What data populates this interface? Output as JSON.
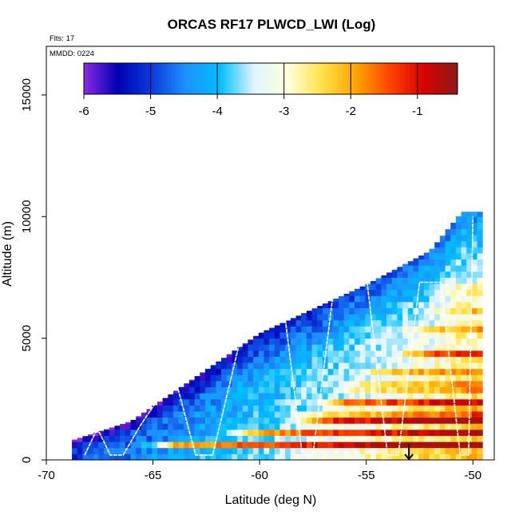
{
  "chart_data": {
    "type": "heatmap",
    "title": "ORCAS RF17 PLWCD_LWI (Log)",
    "flights_label": "Flts: 17",
    "mmdd_label": "MMDD: 0224",
    "xlabel": "Latitude (deg N)",
    "ylabel": "Altitude (m)",
    "xlim": [
      -70,
      -49
    ],
    "ylim": [
      0,
      17000
    ],
    "x_ticks": [
      -70,
      -65,
      -60,
      -55,
      -50
    ],
    "x_tick_labels": [
      "-70",
      "-65",
      "-60",
      "-55",
      "-50"
    ],
    "y_ticks": [
      0,
      5000,
      10000,
      15000
    ],
    "y_tick_labels": [
      "0",
      "5000",
      "10000",
      "15000"
    ],
    "colorbar": {
      "range": [
        -6,
        -0.4
      ],
      "ticks": [
        -6,
        -5,
        -4,
        -3,
        -2,
        -1
      ],
      "tick_labels": [
        "-6",
        "-5",
        "-4",
        "-3",
        "-2",
        "-1"
      ],
      "colors": [
        "#8a2be2",
        "#0000b4",
        "#0a3cdc",
        "#1e90ff",
        "#00bfff",
        "#e0f4ff",
        "#ffffe0",
        "#ffe24a",
        "#ffa500",
        "#ff4500",
        "#d90000",
        "#8b1a1a"
      ]
    },
    "cell_size": {
      "dlat": 0.25,
      "dalt": 250
    },
    "field_extent": {
      "lat_min": -68.8,
      "lat_max": -49.7,
      "top_altitude_by_latitude": [
        [
          -68.8,
          800
        ],
        [
          -66,
          1600
        ],
        [
          -60,
          5200
        ],
        [
          -55,
          7200
        ],
        [
          -52,
          8600
        ],
        [
          -50.5,
          10200
        ]
      ]
    },
    "flight_track": {
      "color": "#ffffff",
      "points": [
        [
          -68.2,
          200
        ],
        [
          -67.6,
          1300
        ],
        [
          -67.0,
          200
        ],
        [
          -66.4,
          200
        ],
        [
          -65.6,
          1400
        ],
        [
          -64.0,
          3500
        ],
        [
          -63.0,
          200
        ],
        [
          -62.2,
          200
        ],
        [
          -61.0,
          4600
        ],
        [
          -59.0,
          7200
        ],
        [
          -58.0,
          200
        ],
        [
          -57.5,
          200
        ],
        [
          -56.5,
          7200
        ],
        [
          -55.0,
          7600
        ],
        [
          -54.0,
          200
        ],
        [
          -53.5,
          200
        ],
        [
          -52.5,
          7300
        ],
        [
          -51.5,
          7300
        ],
        [
          -50.6,
          200
        ],
        [
          -50.2,
          200
        ],
        [
          -50.0,
          10000
        ]
      ]
    },
    "marker": {
      "lat": -53.0,
      "alt_top": 650,
      "alt_bottom": 0,
      "symbol": "down-arrow"
    }
  }
}
